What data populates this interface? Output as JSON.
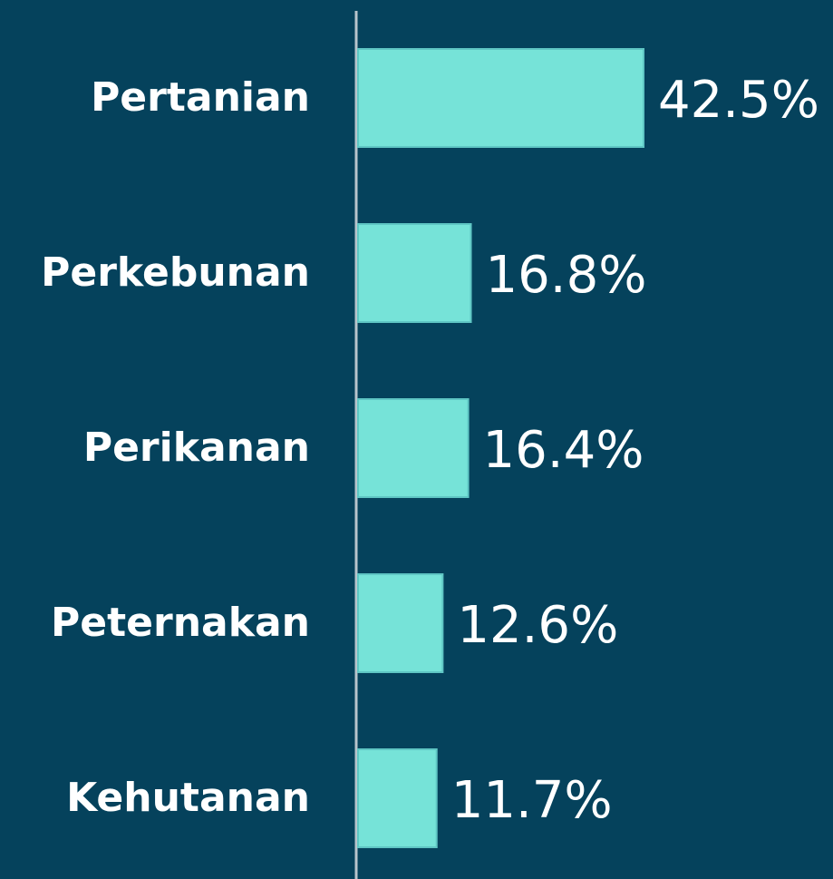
{
  "chart_data": {
    "type": "bar",
    "orientation": "horizontal",
    "categories": [
      "Pertanian",
      "Perkebunan",
      "Perikanan",
      "Peternakan",
      "Kehutanan"
    ],
    "values": [
      42.5,
      16.8,
      16.4,
      12.6,
      11.7
    ],
    "value_labels": [
      "42.5%",
      "16.8%",
      "16.4%",
      "12.6%",
      "11.7%"
    ],
    "color": "#76e3d8"
  }
}
